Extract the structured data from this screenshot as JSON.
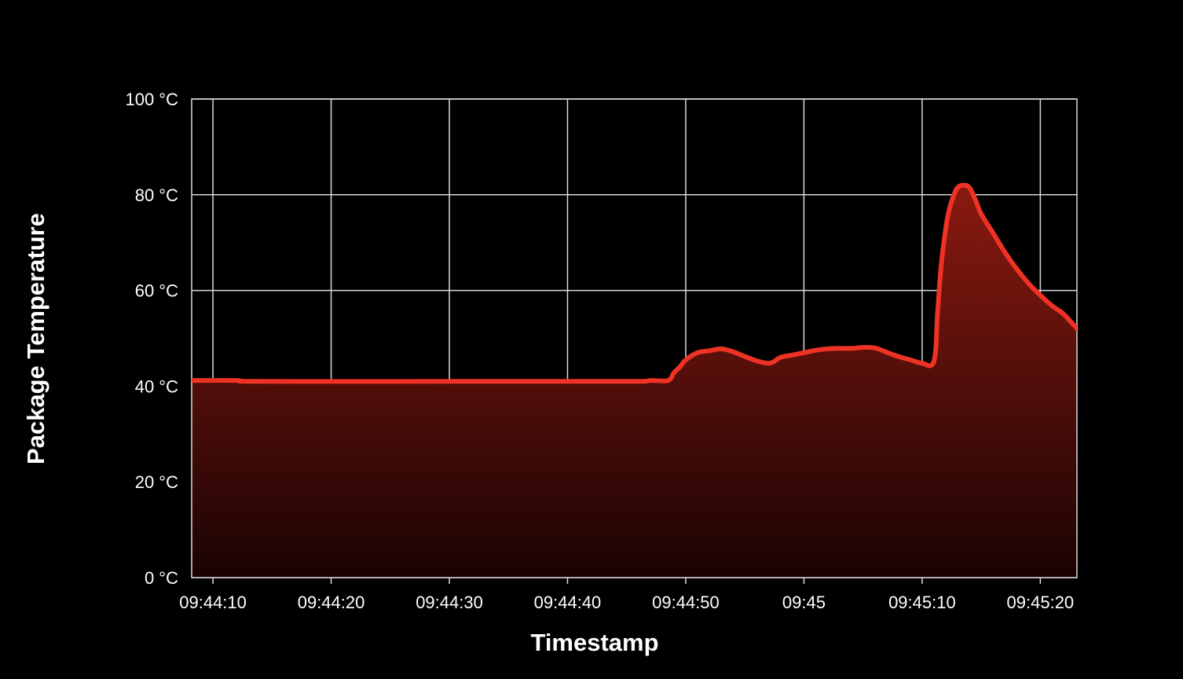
{
  "chart_data": {
    "type": "area",
    "title": "",
    "xlabel": "Timestamp",
    "ylabel": "Package Temperature",
    "ylim": [
      0,
      100
    ],
    "xlim": [
      "09:44:08.2",
      "09:45:23.1"
    ],
    "y_ticks": [
      {
        "value": 0,
        "label": "0 °C"
      },
      {
        "value": 20,
        "label": "20 °C"
      },
      {
        "value": 40,
        "label": "40 °C"
      },
      {
        "value": 60,
        "label": "60 °C"
      },
      {
        "value": 80,
        "label": "80 °C"
      },
      {
        "value": 100,
        "label": "100 °C"
      }
    ],
    "x_ticks": [
      {
        "value": "09:44:10",
        "label": "09:44:10"
      },
      {
        "value": "09:44:20",
        "label": "09:44:20"
      },
      {
        "value": "09:44:30",
        "label": "09:44:30"
      },
      {
        "value": "09:44:40",
        "label": "09:44:40"
      },
      {
        "value": "09:44:50",
        "label": "09:44:50"
      },
      {
        "value": "09:45:00",
        "label": "09:45"
      },
      {
        "value": "09:45:10",
        "label": "09:45:10"
      },
      {
        "value": "09:45:20",
        "label": "09:45:20"
      }
    ],
    "grid": true,
    "line_color": "#ee3224",
    "fill_color_top": "#8a1a10",
    "fill_color_bottom": "#1a0303",
    "series": [
      {
        "x": [
          "09:44:08.2",
          "09:44:12",
          "09:44:14",
          "09:44:30",
          "09:44:40",
          "09:44:46",
          "09:44:47",
          "09:44:48.5",
          "09:44:49",
          "09:44:49.5",
          "09:44:50",
          "09:44:51",
          "09:44:52",
          "09:44:53",
          "09:44:54",
          "09:44:55",
          "09:44:56",
          "09:44:57",
          "09:44:57.5",
          "09:44:58",
          "09:44:59",
          "09:45:00",
          "09:45:01",
          "09:45:02",
          "09:45:03",
          "09:45:04",
          "09:45:05",
          "09:45:06",
          "09:45:07",
          "09:45:08",
          "09:45:09",
          "09:45:10",
          "09:45:11",
          "09:45:11.3",
          "09:45:11.6",
          "09:45:12",
          "09:45:12.3",
          "09:45:12.7",
          "09:45:13",
          "09:45:13.5",
          "09:45:14",
          "09:45:14.5",
          "09:45:15",
          "09:45:16",
          "09:45:17",
          "09:45:18",
          "09:45:19",
          "09:45:20",
          "09:45:21",
          "09:45:22",
          "09:45:23.1"
        ],
        "values": [
          41.2,
          41.2,
          41.0,
          41.0,
          41.0,
          41.0,
          41.2,
          41.2,
          42.8,
          44.0,
          45.5,
          47.0,
          47.4,
          47.8,
          47.2,
          46.2,
          45.3,
          44.8,
          45.2,
          46.0,
          46.5,
          47.0,
          47.5,
          47.8,
          47.9,
          47.9,
          48.1,
          48.0,
          47.1,
          46.2,
          45.5,
          44.8,
          45.2,
          55.0,
          65.0,
          73.0,
          77.0,
          80.0,
          81.5,
          82.0,
          81.5,
          79.0,
          76.0,
          72.0,
          68.0,
          64.5,
          61.5,
          59.0,
          56.8,
          55.0,
          52.0
        ]
      }
    ]
  }
}
